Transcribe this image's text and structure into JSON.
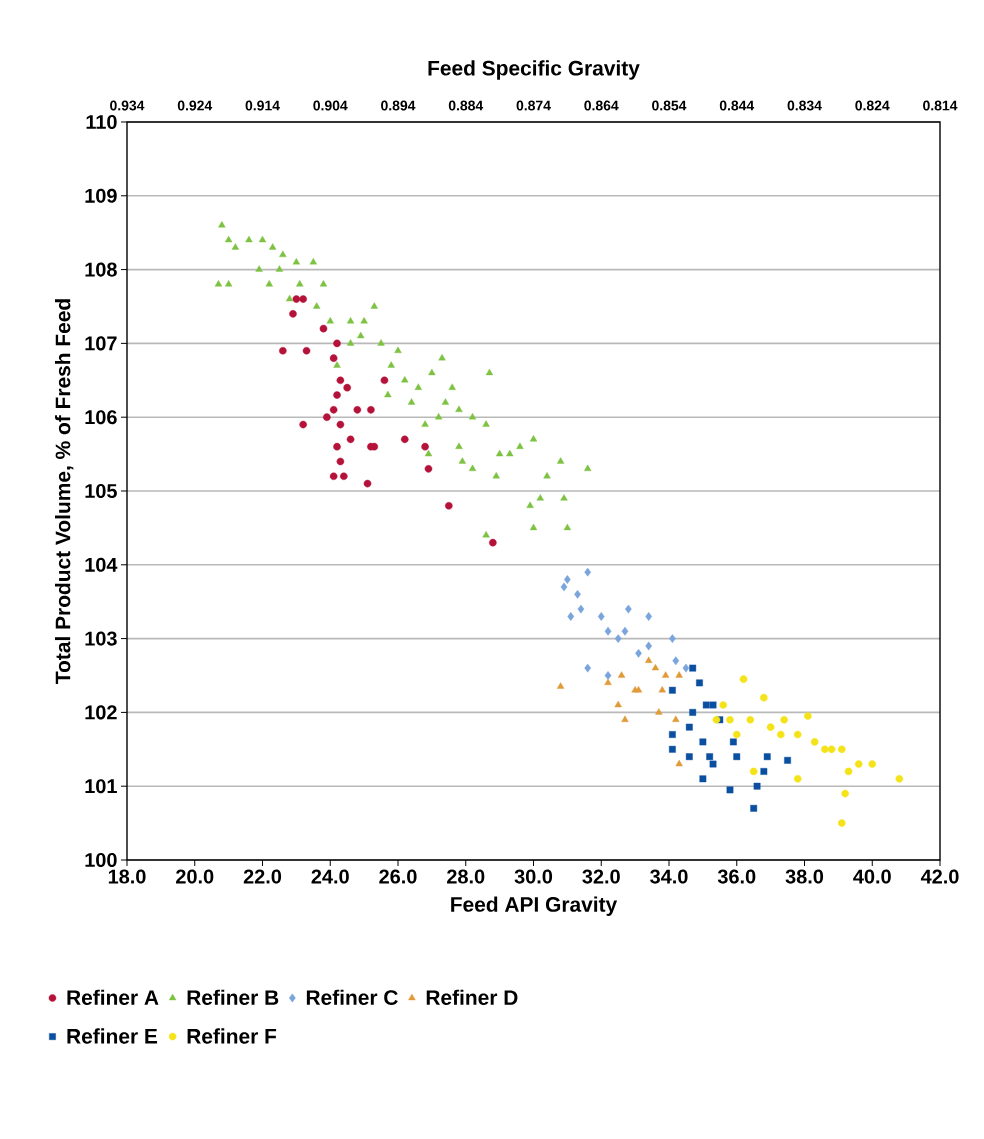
{
  "chart_data": {
    "type": "scatter",
    "xlabel": "Feed API Gravity",
    "ylabel": "Total Product Volume, % of Fresh Feed",
    "x2label": "Feed Specific Gravity",
    "xlim": [
      18,
      42
    ],
    "ylim": [
      100,
      110
    ],
    "x2lim": [
      0.934,
      0.814
    ],
    "xticks": [
      {
        "value": 18,
        "label": "18.0"
      },
      {
        "value": 20,
        "label": "20.0"
      },
      {
        "value": 22,
        "label": "22.0"
      },
      {
        "value": 24,
        "label": "24.0"
      },
      {
        "value": 26,
        "label": "26.0"
      },
      {
        "value": 28,
        "label": "28.0"
      },
      {
        "value": 30,
        "label": "30.0"
      },
      {
        "value": 32,
        "label": "32.0"
      },
      {
        "value": 34,
        "label": "34.0"
      },
      {
        "value": 36,
        "label": "36.0"
      },
      {
        "value": 38,
        "label": "38.0"
      },
      {
        "value": 40,
        "label": "40.0"
      },
      {
        "value": 42,
        "label": "42.0"
      }
    ],
    "yticks": [
      100,
      101,
      102,
      103,
      104,
      105,
      106,
      107,
      108,
      109,
      110
    ],
    "x2ticks": [
      0.934,
      0.924,
      0.914,
      0.904,
      0.894,
      0.884,
      0.874,
      0.864,
      0.854,
      0.844,
      0.834,
      0.824,
      0.814
    ],
    "grid": "y",
    "legend": "bottom",
    "series": [
      {
        "name": "Refiner A",
        "color": "#b5123a",
        "marker": "circle",
        "x": [
          23.0,
          23.2,
          22.9,
          22.6,
          23.3,
          23.8,
          24.1,
          24.2,
          24.3,
          23.9,
          24.1,
          24.3,
          24.2,
          24.5,
          23.2,
          24.2,
          24.3,
          24.1,
          24.4,
          24.8,
          25.2,
          25.2,
          25.3,
          25.1,
          25.6,
          26.2,
          26.8,
          26.9,
          27.5,
          28.8,
          24.6
        ],
        "values": [
          107.6,
          107.6,
          107.4,
          106.9,
          106.9,
          107.2,
          106.8,
          107.0,
          106.5,
          106.0,
          106.1,
          105.9,
          106.3,
          106.4,
          105.9,
          105.6,
          105.4,
          105.2,
          105.2,
          106.1,
          106.1,
          105.6,
          105.6,
          105.1,
          106.5,
          105.7,
          105.6,
          105.3,
          104.8,
          104.3,
          105.7
        ]
      },
      {
        "name": "Refiner B",
        "color": "#7dc242",
        "marker": "triangle",
        "x": [
          20.8,
          21.0,
          21.2,
          21.6,
          20.7,
          21.0,
          22.0,
          22.3,
          22.6,
          23.0,
          23.5,
          21.9,
          22.2,
          22.5,
          23.1,
          23.6,
          24.0,
          24.6,
          25.0,
          25.3,
          25.5,
          24.6,
          24.2,
          25.8,
          26.2,
          26.6,
          27.0,
          27.3,
          27.6,
          27.8,
          27.2,
          26.8,
          26.4,
          28.2,
          28.6,
          28.7,
          29.0,
          29.3,
          28.9,
          29.6,
          30.0,
          30.4,
          30.8,
          31.6,
          30.2,
          29.9,
          30.9,
          31.0,
          30.0,
          28.6,
          28.2,
          27.8,
          26.9,
          27.9,
          25.7,
          26.0,
          24.9,
          27.4,
          22.8,
          23.8
        ],
        "values": [
          108.6,
          108.4,
          108.3,
          108.4,
          107.8,
          107.8,
          108.4,
          108.3,
          108.2,
          108.1,
          108.1,
          108.0,
          107.8,
          108.0,
          107.8,
          107.5,
          107.3,
          107.3,
          107.3,
          107.5,
          107.0,
          107.0,
          106.7,
          106.7,
          106.5,
          106.4,
          106.6,
          106.8,
          106.4,
          106.1,
          106.0,
          105.9,
          106.2,
          106.0,
          105.9,
          106.6,
          105.5,
          105.5,
          105.2,
          105.6,
          105.7,
          105.2,
          105.4,
          105.3,
          104.9,
          104.8,
          104.9,
          104.5,
          104.5,
          104.4,
          105.3,
          105.6,
          105.5,
          105.4,
          106.3,
          106.9,
          107.1,
          106.2,
          107.6,
          107.8
        ]
      },
      {
        "name": "Refiner C",
        "color": "#7aa4dc",
        "marker": "diamond",
        "x": [
          31.0,
          31.6,
          30.9,
          31.1,
          31.4,
          32.0,
          32.2,
          32.8,
          32.7,
          33.4,
          33.4,
          33.1,
          34.1,
          34.2,
          31.6,
          32.2,
          34.5,
          31.3,
          32.5
        ],
        "values": [
          103.8,
          103.9,
          103.7,
          103.3,
          103.4,
          103.3,
          103.1,
          103.4,
          103.1,
          103.3,
          102.9,
          102.8,
          103.0,
          102.7,
          102.6,
          102.5,
          102.6,
          103.6,
          103.0
        ]
      },
      {
        "name": "Refiner D",
        "color": "#e09a38",
        "marker": "triangle",
        "x": [
          30.8,
          32.2,
          32.6,
          32.5,
          32.7,
          33.0,
          33.1,
          33.6,
          33.9,
          33.8,
          33.7,
          34.2,
          34.3,
          34.3,
          33.4
        ],
        "values": [
          102.35,
          102.4,
          102.5,
          102.1,
          101.9,
          102.3,
          102.3,
          102.6,
          102.5,
          102.3,
          102.0,
          101.9,
          101.3,
          102.5,
          102.7
        ]
      },
      {
        "name": "Refiner E",
        "color": "#0b4fa0",
        "marker": "square",
        "x": [
          34.7,
          34.9,
          34.1,
          34.1,
          34.1,
          34.6,
          34.6,
          35.1,
          35.0,
          35.2,
          35.0,
          35.3,
          35.8,
          35.9,
          36.0,
          35.5,
          36.6,
          36.5,
          36.9,
          36.8,
          37.5,
          34.7,
          35.3
        ],
        "values": [
          102.6,
          102.4,
          102.3,
          101.7,
          101.5,
          101.8,
          101.4,
          102.1,
          101.6,
          101.4,
          101.1,
          101.3,
          100.95,
          101.6,
          101.4,
          101.9,
          101.0,
          100.7,
          101.4,
          101.2,
          101.35,
          102.0,
          102.1
        ]
      },
      {
        "name": "Refiner F",
        "color": "#f5e31a",
        "marker": "circle",
        "x": [
          36.2,
          36.8,
          35.6,
          35.8,
          36.4,
          37.0,
          37.4,
          38.1,
          37.8,
          38.3,
          38.8,
          39.1,
          39.6,
          40.0,
          40.8,
          37.8,
          36.5,
          39.2,
          39.1,
          35.4,
          36.0,
          37.3,
          38.6,
          39.3
        ],
        "values": [
          102.45,
          102.2,
          102.1,
          101.9,
          101.9,
          101.8,
          101.9,
          101.95,
          101.7,
          101.6,
          101.5,
          101.5,
          101.3,
          101.3,
          101.1,
          101.1,
          101.2,
          100.9,
          100.5,
          101.9,
          101.7,
          101.7,
          101.5,
          101.2
        ]
      }
    ]
  }
}
